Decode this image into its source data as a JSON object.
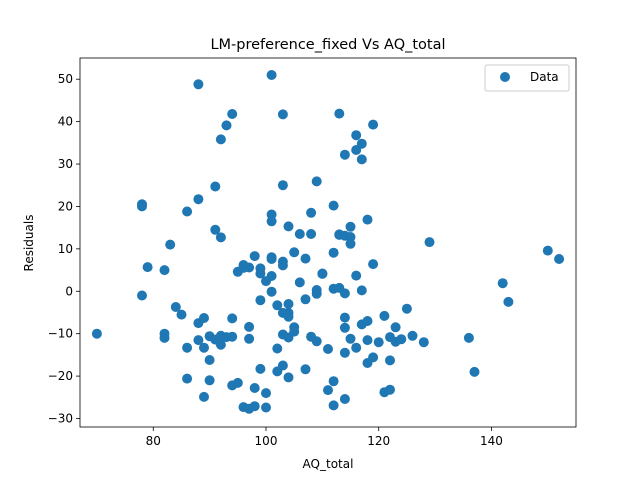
{
  "chart_data": {
    "type": "scatter",
    "title": "LM-preference_fixed Vs AQ_total",
    "xlabel": "AQ_total",
    "ylabel": "Residuals",
    "xlim": [
      67,
      155
    ],
    "ylim": [
      -32,
      55
    ],
    "xticks": [
      80,
      100,
      120,
      140
    ],
    "yticks": [
      -30,
      -20,
      -10,
      0,
      10,
      20,
      30,
      40,
      50
    ],
    "grid": false,
    "legend": {
      "position": "top-right",
      "entries": [
        "Data"
      ]
    },
    "color": "#1f77b4",
    "series": [
      {
        "name": "Data",
        "points": [
          [
            70,
            -10
          ],
          [
            78,
            20.5
          ],
          [
            78,
            20
          ],
          [
            78,
            -1
          ],
          [
            79,
            5.7
          ],
          [
            82,
            5
          ],
          [
            82,
            -10
          ],
          [
            82,
            -11
          ],
          [
            83,
            11
          ],
          [
            84,
            -3.7
          ],
          [
            85,
            -5.5
          ],
          [
            86,
            18.8
          ],
          [
            86,
            -13.3
          ],
          [
            86,
            -20.6
          ],
          [
            88,
            48.8
          ],
          [
            88,
            21.7
          ],
          [
            88,
            -7.5
          ],
          [
            88,
            -11.5
          ],
          [
            89,
            -6.3
          ],
          [
            89,
            -24.9
          ],
          [
            89,
            -13.3
          ],
          [
            90,
            -21
          ],
          [
            90,
            -10.6
          ],
          [
            90,
            -16.2
          ],
          [
            91,
            24.7
          ],
          [
            91,
            14.5
          ],
          [
            91,
            -11.4
          ],
          [
            92,
            35.8
          ],
          [
            92,
            12.7
          ],
          [
            92,
            -12.6
          ],
          [
            92,
            -10.5
          ],
          [
            93,
            39.1
          ],
          [
            93,
            -10.8
          ],
          [
            94,
            41.8
          ],
          [
            94,
            -6.4
          ],
          [
            94,
            -10.7
          ],
          [
            94,
            -22.2
          ],
          [
            95,
            4.6
          ],
          [
            95,
            -21.6
          ],
          [
            96,
            6.2
          ],
          [
            96,
            5.5
          ],
          [
            96,
            -27.3
          ],
          [
            97,
            5.6
          ],
          [
            97,
            -8.4
          ],
          [
            97,
            -11.2
          ],
          [
            97,
            -27.7
          ],
          [
            98,
            8.3
          ],
          [
            98,
            -22.8
          ],
          [
            98,
            -27.1
          ],
          [
            99,
            5.4
          ],
          [
            99,
            4.2
          ],
          [
            99,
            -2.1
          ],
          [
            99,
            -18.3
          ],
          [
            100,
            2.4
          ],
          [
            100,
            -24
          ],
          [
            100,
            -27.4
          ],
          [
            101,
            51
          ],
          [
            101,
            18.1
          ],
          [
            101,
            16.5
          ],
          [
            101,
            8
          ],
          [
            101,
            7.6
          ],
          [
            101,
            3.6
          ],
          [
            101,
            -0.1
          ],
          [
            102,
            -3.3
          ],
          [
            102,
            -13.5
          ],
          [
            102,
            -18.9
          ],
          [
            103,
            41.7
          ],
          [
            103,
            25
          ],
          [
            103,
            7
          ],
          [
            103,
            6.1
          ],
          [
            103,
            -5.1
          ],
          [
            103,
            -10.2
          ],
          [
            103,
            -17.5
          ],
          [
            104,
            15.3
          ],
          [
            104,
            -3
          ],
          [
            104,
            -5.1
          ],
          [
            104,
            -6
          ],
          [
            104,
            -10.9
          ],
          [
            104,
            -20.3
          ],
          [
            105,
            9.2
          ],
          [
            105,
            -8.5
          ],
          [
            105,
            -9.5
          ],
          [
            106,
            13.5
          ],
          [
            106,
            2.1
          ],
          [
            107,
            7.7
          ],
          [
            107,
            -1.9
          ],
          [
            107,
            -18.4
          ],
          [
            108,
            18.5
          ],
          [
            108,
            13.5
          ],
          [
            108,
            -10.7
          ],
          [
            109,
            25.9
          ],
          [
            109,
            0.3
          ],
          [
            109,
            -0.6
          ],
          [
            109,
            -11.8
          ],
          [
            110,
            4.2
          ],
          [
            110,
            4.1
          ],
          [
            111,
            -13.6
          ],
          [
            111,
            -23.3
          ],
          [
            112,
            20.2
          ],
          [
            112,
            9.1
          ],
          [
            112,
            0.6
          ],
          [
            112,
            -26.9
          ],
          [
            112,
            -21.2
          ],
          [
            113,
            41.9
          ],
          [
            113,
            13.4
          ],
          [
            113,
            13.3
          ],
          [
            113,
            0.8
          ],
          [
            114,
            32.2
          ],
          [
            114,
            13.1
          ],
          [
            114,
            -0.5
          ],
          [
            114,
            -6.2
          ],
          [
            114,
            -8.6
          ],
          [
            114,
            -14.5
          ],
          [
            114,
            -25.4
          ],
          [
            115,
            15.2
          ],
          [
            115,
            12.8
          ],
          [
            115,
            11.2
          ],
          [
            115,
            -11.2
          ],
          [
            116,
            36.8
          ],
          [
            116,
            33.3
          ],
          [
            116,
            3.7
          ],
          [
            116,
            -13.3
          ],
          [
            117,
            34.8
          ],
          [
            117,
            31.1
          ],
          [
            117,
            0.2
          ],
          [
            117,
            -7.8
          ],
          [
            118,
            16.9
          ],
          [
            118,
            -7
          ],
          [
            118,
            -11.5
          ],
          [
            118,
            -16.9
          ],
          [
            119,
            39.3
          ],
          [
            119,
            6.4
          ],
          [
            119,
            -15.6
          ],
          [
            120,
            -12
          ],
          [
            121,
            -5.8
          ],
          [
            121,
            -23.8
          ],
          [
            122,
            -10.8
          ],
          [
            122,
            -16.3
          ],
          [
            122,
            -23.2
          ],
          [
            123,
            -8.5
          ],
          [
            123,
            -11.9
          ],
          [
            124,
            -11.3
          ],
          [
            125,
            -4.1
          ],
          [
            126,
            -10.5
          ],
          [
            128,
            -12
          ],
          [
            129,
            11.6
          ],
          [
            136,
            -11
          ],
          [
            137,
            -19
          ],
          [
            142,
            1.9
          ],
          [
            143,
            -2.5
          ],
          [
            150,
            9.6
          ],
          [
            152,
            7.6
          ]
        ]
      }
    ]
  }
}
